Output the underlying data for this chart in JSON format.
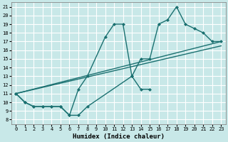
{
  "background_color": "#c8e8e8",
  "grid_color": "#ffffff",
  "line_color": "#1a7070",
  "xlabel": "Humidex (Indice chaleur)",
  "xlim": [
    -0.5,
    23.5
  ],
  "ylim": [
    7.5,
    21.5
  ],
  "xticks": [
    0,
    1,
    2,
    3,
    4,
    5,
    6,
    7,
    8,
    9,
    10,
    11,
    12,
    13,
    14,
    15,
    16,
    17,
    18,
    19,
    20,
    21,
    22,
    23
  ],
  "yticks": [
    8,
    9,
    10,
    11,
    12,
    13,
    14,
    15,
    16,
    17,
    18,
    19,
    20,
    21
  ],
  "line1_x": [
    0,
    1,
    2,
    3,
    4,
    5,
    6,
    7,
    8,
    10,
    11,
    12,
    13,
    14,
    15,
    16,
    17,
    18,
    19,
    20,
    21,
    22,
    23
  ],
  "line1_y": [
    11,
    10,
    9.5,
    9.5,
    9.5,
    9.5,
    8.5,
    11.5,
    13,
    17.5,
    19,
    19,
    13,
    15,
    15,
    19,
    19.5,
    21,
    19,
    18.5,
    18,
    17,
    17
  ],
  "line2_x": [
    0,
    1,
    2,
    3,
    4,
    5,
    6,
    7,
    8,
    13,
    14,
    15
  ],
  "line2_y": [
    11,
    10,
    9.5,
    9.5,
    9.5,
    9.5,
    8.5,
    8.5,
    9.5,
    13,
    11.5,
    11.5
  ],
  "line3_x": [
    0,
    23
  ],
  "line3_y": [
    11,
    17
  ],
  "line4_x": [
    0,
    23
  ],
  "line4_y": [
    11,
    16.5
  ],
  "line_width": 1.0,
  "marker_size": 2.5
}
